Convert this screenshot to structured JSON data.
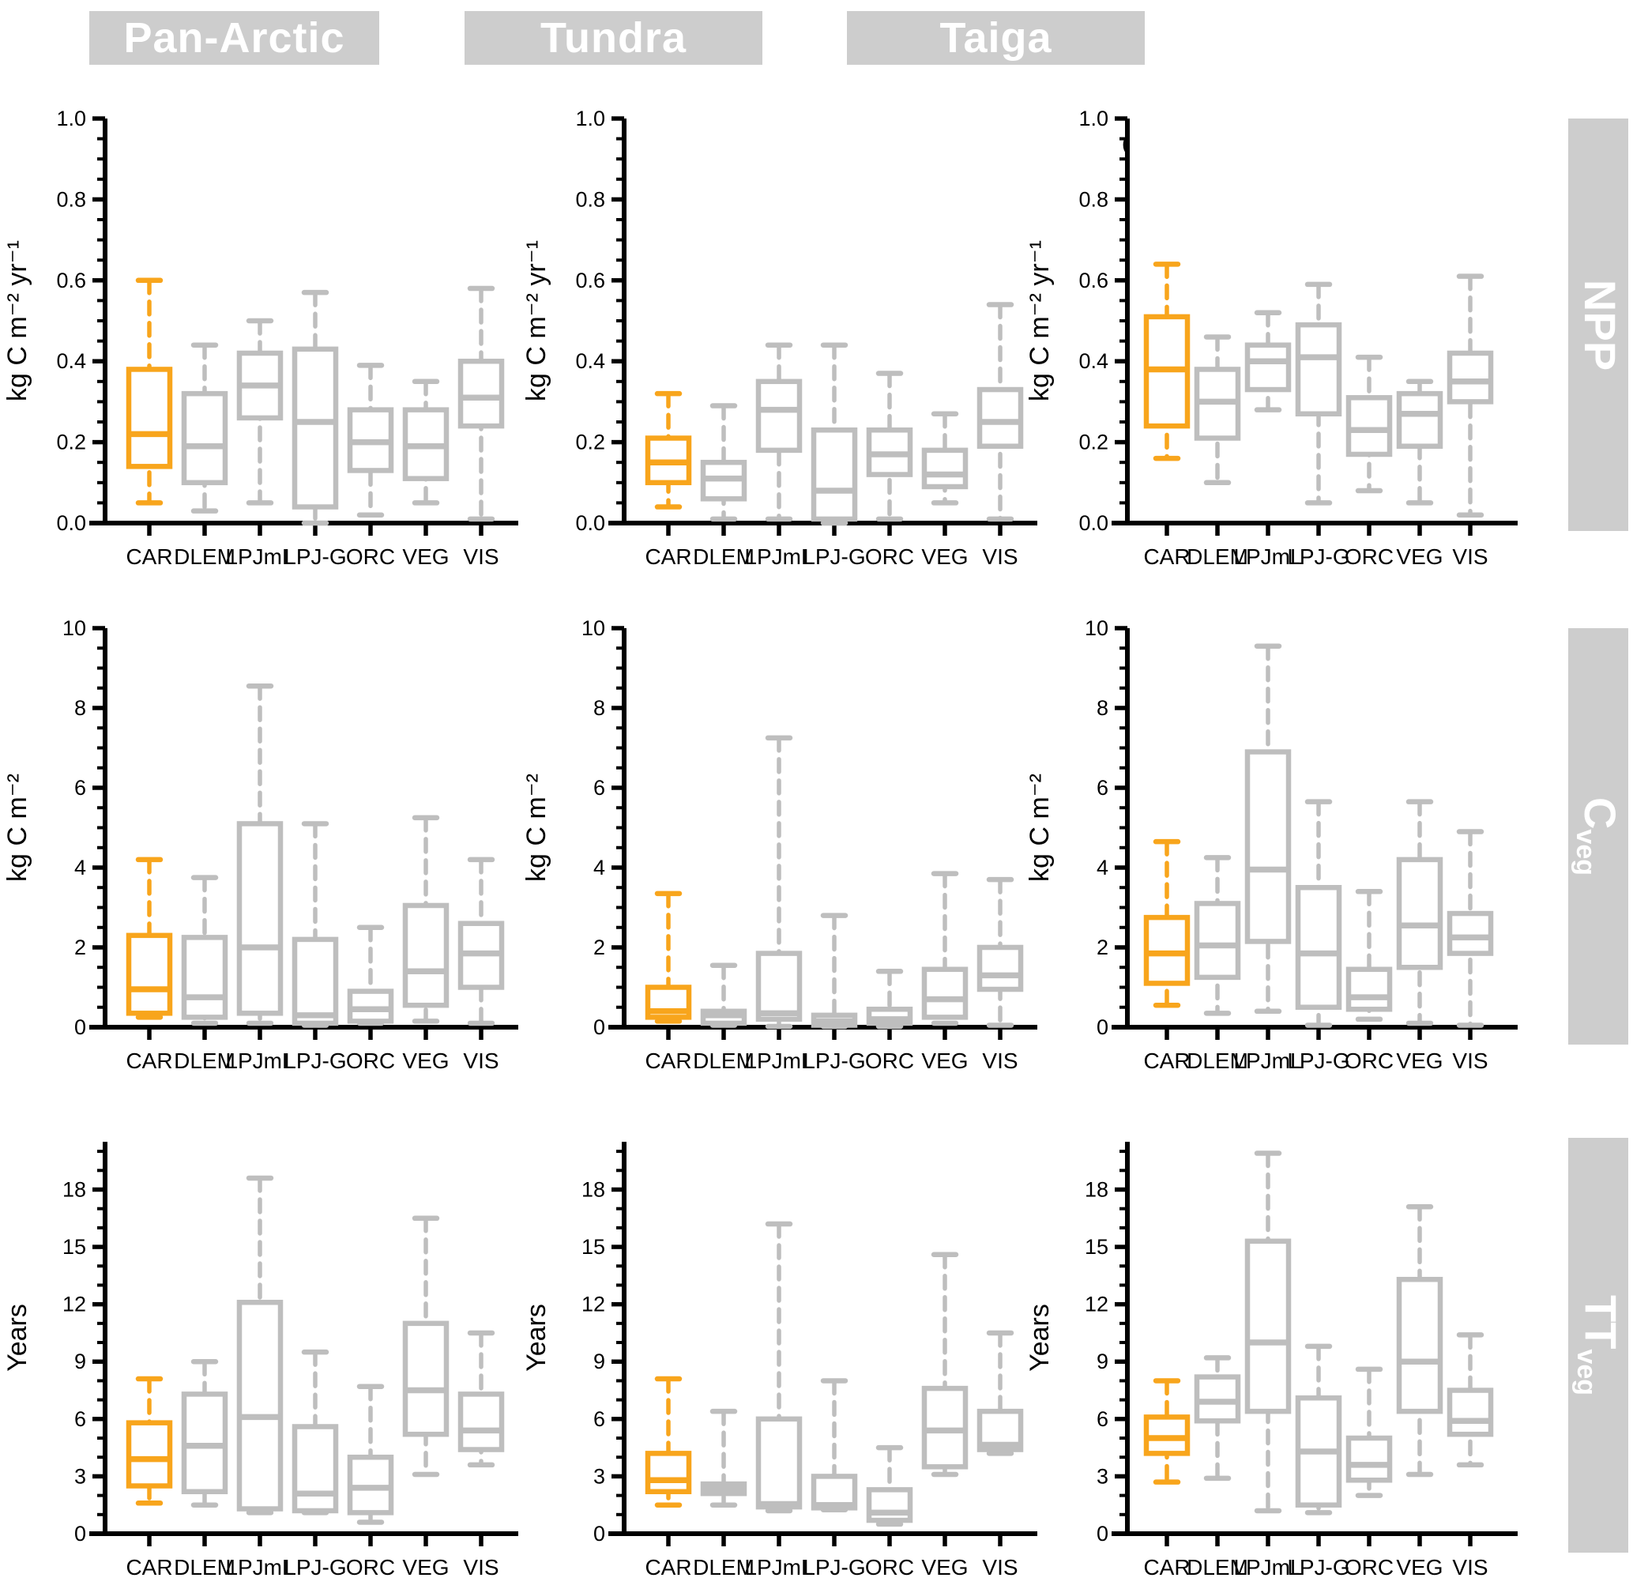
{
  "chart_data": {
    "type": "boxplot-grid",
    "columns": [
      "Pan-Arctic",
      "Tundra",
      "Taiga"
    ],
    "models": [
      "CAR",
      "DLEM",
      "LPJmL",
      "LPJ-G",
      "ORC",
      "VEG",
      "VIS"
    ],
    "highlight_model": "CAR",
    "box_values_order": [
      "whisker_low",
      "q1",
      "median",
      "q3",
      "whisker_high"
    ],
    "colors": {
      "accent_orange": "#F8A51C",
      "box_gray": "#BEBEBE",
      "band_bg": "#CDCDCD",
      "band_text": "#FFFFFF",
      "axis": "#000000"
    },
    "rows": [
      {
        "label_main": "NPP",
        "label_sub": "",
        "ylabel": "kg C m⁻² yr⁻¹",
        "tick_values": [
          0,
          0.2,
          0.4,
          0.6,
          0.8,
          1.0
        ],
        "tick_labels": [
          "0.0",
          "0.2",
          "0.4",
          "0.6",
          "0.8",
          "1.0"
        ],
        "minor_step": 0.05,
        "minor_max": 0.95,
        "axis_max": 1.0
      },
      {
        "label_main": "C",
        "label_sub": "veg",
        "ylabel": "kg C m⁻²",
        "tick_values": [
          0,
          2,
          4,
          6,
          8,
          10
        ],
        "tick_labels": [
          "0",
          "2",
          "4",
          "6",
          "8",
          "10"
        ],
        "minor_step": 0.5,
        "minor_max": 9.5,
        "axis_max": 10
      },
      {
        "label_main": "TT",
        "label_sub": "veg",
        "ylabel": "Years",
        "tick_values": [
          0,
          3,
          6,
          9,
          12,
          15,
          18
        ],
        "tick_labels": [
          "0",
          "3",
          "6",
          "9",
          "12",
          "15",
          "18"
        ],
        "minor_step": 1,
        "minor_max": 20,
        "axis_max": 20.5
      }
    ],
    "panels": [
      {
        "region": "Pan-Arctic",
        "variable": "NPP",
        "boxes": {
          "CAR": [
            0.05,
            0.14,
            0.22,
            0.38,
            0.6
          ],
          "DLEM": [
            0.03,
            0.1,
            0.19,
            0.32,
            0.44
          ],
          "LPJmL": [
            0.05,
            0.26,
            0.34,
            0.42,
            0.5
          ],
          "LPJ-G": [
            0.0,
            0.04,
            0.25,
            0.43,
            0.57
          ],
          "ORC": [
            0.02,
            0.13,
            0.2,
            0.28,
            0.39
          ],
          "VEG": [
            0.05,
            0.11,
            0.19,
            0.28,
            0.35
          ],
          "VIS": [
            0.01,
            0.24,
            0.31,
            0.4,
            0.58
          ]
        }
      },
      {
        "region": "Tundra",
        "variable": "NPP",
        "boxes": {
          "CAR": [
            0.04,
            0.1,
            0.15,
            0.21,
            0.32
          ],
          "DLEM": [
            0.01,
            0.06,
            0.11,
            0.15,
            0.29
          ],
          "LPJmL": [
            0.01,
            0.18,
            0.28,
            0.35,
            0.44
          ],
          "LPJ-G": [
            0.0,
            0.01,
            0.08,
            0.23,
            0.44
          ],
          "ORC": [
            0.01,
            0.12,
            0.17,
            0.23,
            0.37
          ],
          "VEG": [
            0.05,
            0.09,
            0.12,
            0.18,
            0.27
          ],
          "VIS": [
            0.01,
            0.19,
            0.25,
            0.33,
            0.54
          ]
        }
      },
      {
        "region": "Taiga",
        "variable": "NPP",
        "boxes": {
          "CAR": [
            0.16,
            0.24,
            0.38,
            0.51,
            0.64
          ],
          "DLEM": [
            0.1,
            0.21,
            0.3,
            0.38,
            0.46
          ],
          "LPJmL": [
            0.28,
            0.33,
            0.4,
            0.44,
            0.52
          ],
          "LPJ-G": [
            0.05,
            0.27,
            0.41,
            0.49,
            0.59
          ],
          "ORC": [
            0.08,
            0.17,
            0.23,
            0.31,
            0.41
          ],
          "VEG": [
            0.05,
            0.19,
            0.27,
            0.32,
            0.35
          ],
          "VIS": [
            0.02,
            0.3,
            0.35,
            0.42,
            0.61
          ]
        }
      },
      {
        "region": "Pan-Arctic",
        "variable": "Cveg",
        "boxes": {
          "CAR": [
            0.25,
            0.35,
            0.95,
            2.3,
            4.2
          ],
          "DLEM": [
            0.1,
            0.25,
            0.75,
            2.25,
            3.75
          ],
          "LPJmL": [
            0.1,
            0.35,
            2.0,
            5.1,
            8.55
          ],
          "LPJ-G": [
            0.05,
            0.1,
            0.3,
            2.2,
            5.1
          ],
          "ORC": [
            0.1,
            0.15,
            0.45,
            0.9,
            2.5
          ],
          "VEG": [
            0.15,
            0.55,
            1.4,
            3.05,
            5.25
          ],
          "VIS": [
            0.1,
            1.0,
            1.85,
            2.6,
            4.2
          ]
        }
      },
      {
        "region": "Tundra",
        "variable": "Cveg",
        "boxes": {
          "CAR": [
            0.15,
            0.25,
            0.4,
            1.0,
            3.35
          ],
          "DLEM": [
            0.05,
            0.1,
            0.3,
            0.4,
            1.55
          ],
          "LPJmL": [
            0.02,
            0.2,
            0.35,
            1.85,
            7.25
          ],
          "LPJ-G": [
            0.02,
            0.05,
            0.15,
            0.3,
            2.8
          ],
          "ORC": [
            0.02,
            0.1,
            0.2,
            0.45,
            1.4
          ],
          "VEG": [
            0.1,
            0.25,
            0.7,
            1.45,
            3.85
          ],
          "VIS": [
            0.05,
            0.95,
            1.3,
            2.0,
            3.7
          ]
        }
      },
      {
        "region": "Taiga",
        "variable": "Cveg",
        "boxes": {
          "CAR": [
            0.55,
            1.1,
            1.85,
            2.75,
            4.65
          ],
          "DLEM": [
            0.35,
            1.25,
            2.05,
            3.1,
            4.25
          ],
          "LPJmL": [
            0.4,
            2.15,
            3.95,
            6.9,
            9.55
          ],
          "LPJ-G": [
            0.05,
            0.5,
            1.85,
            3.5,
            5.65
          ],
          "ORC": [
            0.2,
            0.45,
            0.75,
            1.45,
            3.4
          ],
          "VEG": [
            0.1,
            1.5,
            2.55,
            4.2,
            5.65
          ],
          "VIS": [
            0.05,
            1.85,
            2.25,
            2.85,
            4.9
          ]
        }
      },
      {
        "region": "Pan-Arctic",
        "variable": "TTveg",
        "boxes": {
          "CAR": [
            1.6,
            2.5,
            3.9,
            5.8,
            8.1
          ],
          "DLEM": [
            1.5,
            2.2,
            4.6,
            7.3,
            9.0
          ],
          "LPJmL": [
            1.1,
            1.3,
            6.1,
            12.1,
            18.6
          ],
          "LPJ-G": [
            1.1,
            1.2,
            2.1,
            5.6,
            9.5
          ],
          "ORC": [
            0.6,
            1.1,
            2.4,
            4.0,
            7.7
          ],
          "VEG": [
            3.1,
            5.2,
            7.5,
            11.0,
            16.5
          ],
          "VIS": [
            3.6,
            4.4,
            5.4,
            7.3,
            10.5
          ]
        }
      },
      {
        "region": "Tundra",
        "variable": "TTveg",
        "boxes": {
          "CAR": [
            1.5,
            2.2,
            2.8,
            4.2,
            8.1
          ],
          "DLEM": [
            1.5,
            2.1,
            2.35,
            2.6,
            6.4
          ],
          "LPJmL": [
            1.2,
            1.4,
            1.55,
            6.0,
            16.2
          ],
          "LPJ-G": [
            1.25,
            1.35,
            1.5,
            3.0,
            8.0
          ],
          "ORC": [
            0.5,
            0.7,
            1.1,
            2.3,
            4.5
          ],
          "VEG": [
            3.1,
            3.5,
            5.4,
            7.6,
            14.6
          ],
          "VIS": [
            4.2,
            4.4,
            4.65,
            6.4,
            10.5
          ]
        }
      },
      {
        "region": "Taiga",
        "variable": "TTveg",
        "boxes": {
          "CAR": [
            2.7,
            4.2,
            5.0,
            6.1,
            8.0
          ],
          "DLEM": [
            2.9,
            5.9,
            6.9,
            8.2,
            9.2
          ],
          "LPJmL": [
            1.2,
            6.4,
            10.0,
            15.3,
            19.9
          ],
          "LPJ-G": [
            1.1,
            1.5,
            4.3,
            7.1,
            9.8
          ],
          "ORC": [
            2.0,
            2.8,
            3.6,
            5.0,
            8.6
          ],
          "VEG": [
            3.1,
            6.4,
            9.0,
            13.3,
            17.1
          ],
          "VIS": [
            3.6,
            5.2,
            5.9,
            7.5,
            10.4
          ]
        }
      }
    ],
    "artifact": {
      "text": "("
    }
  }
}
